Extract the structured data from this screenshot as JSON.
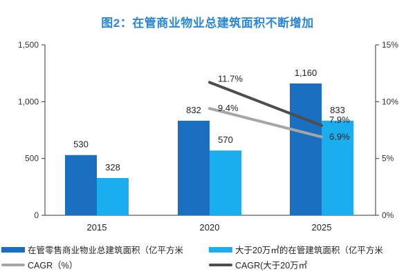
{
  "title": "图2：在管商业物业总建筑面积不断增加",
  "chart_data": {
    "type": "bar",
    "categories": [
      "2015",
      "2020",
      "2025"
    ],
    "series": [
      {
        "name": "在管零售商业物业总建筑面积（亿平方米",
        "kind": "bar",
        "axis": "left",
        "color": "#1a6fc1",
        "values": [
          530,
          832,
          1160
        ],
        "labels": [
          "530",
          "832",
          "1,160"
        ]
      },
      {
        "name": "大于20万㎡的在管建筑面积（亿平方米",
        "kind": "bar",
        "axis": "left",
        "color": "#1aaeee",
        "values": [
          328,
          570,
          833
        ],
        "labels": [
          "328",
          "570",
          "833"
        ]
      },
      {
        "name": "CAGR（%）",
        "kind": "line",
        "axis": "right",
        "color": "#a6a6a6",
        "x": [
          "2020",
          "2025"
        ],
        "values": [
          9.4,
          6.9
        ],
        "labels": [
          "9.4%",
          "6.9%"
        ]
      },
      {
        "name": "CAGR(大于20万㎡",
        "kind": "line",
        "axis": "right",
        "color": "#4d4d4d",
        "x": [
          "2020",
          "2025"
        ],
        "values": [
          11.7,
          7.9
        ],
        "labels": [
          "11.7%",
          "7.9%"
        ]
      }
    ],
    "y_left": {
      "range": [
        0,
        1500
      ],
      "ticks": [
        0,
        500,
        1000,
        1500
      ],
      "tick_labels": [
        "0",
        "500",
        "1,000",
        "1,500"
      ]
    },
    "y_right": {
      "range": [
        0,
        15
      ],
      "ticks": [
        0,
        5,
        10,
        15
      ],
      "tick_labels": [
        "0%",
        "5%",
        "10%",
        "15%"
      ]
    },
    "grid": false,
    "legend_position": "bottom"
  }
}
